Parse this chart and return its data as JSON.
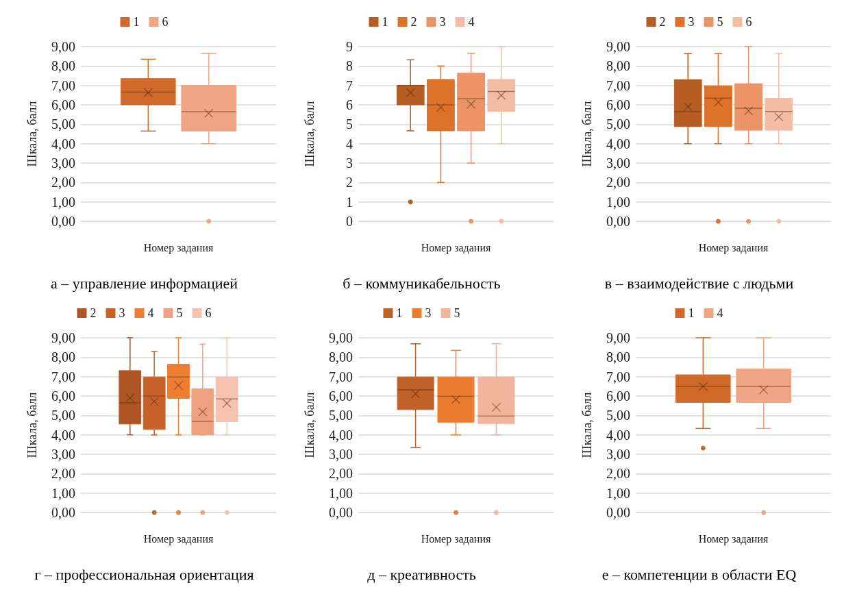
{
  "chart_data": [
    {
      "type": "box",
      "title": "а – управление информацией",
      "xlabel": "Номер задания",
      "ylabel": "Шкала, балл",
      "categories": [
        null
      ],
      "ylim": [
        0,
        9
      ],
      "yticks": [
        {
          "value": 0,
          "label": "0,00"
        },
        {
          "value": 1,
          "label": "1,00"
        },
        {
          "value": 2,
          "label": "2,00"
        },
        {
          "value": 3,
          "label": "3,00"
        },
        {
          "value": 4,
          "label": "4,00"
        },
        {
          "value": 5,
          "label": "5,00"
        },
        {
          "value": 6,
          "label": "6,00"
        },
        {
          "value": 7,
          "label": "7,00"
        },
        {
          "value": 8,
          "label": "8,00"
        },
        {
          "value": 9,
          "label": "9,00"
        }
      ],
      "grid": "y",
      "legend": "top",
      "series": [
        {
          "name": "1",
          "color": "#cf6a2c",
          "boxes": [
            {
              "low": 4.65,
              "q1": 6.0,
              "median": 6.65,
              "q3": 7.35,
              "high": 8.35,
              "mean": 6.63
            }
          ]
        },
        {
          "name": "6",
          "color": "#f0a585",
          "boxes": [
            {
              "low": 4.0,
              "q1": 4.65,
              "median": 5.65,
              "q3": 7.0,
              "high": 8.65,
              "mean": 5.56,
              "outliers": [
                0
              ]
            }
          ]
        }
      ]
    },
    {
      "type": "box",
      "title": "б – коммуникабельность",
      "xlabel": "Номер задания",
      "ylabel": "Шкала, балл",
      "categories": [
        null
      ],
      "ylim": [
        0,
        9
      ],
      "yticks": [
        0,
        1,
        2,
        3,
        4,
        5,
        6,
        7,
        8,
        9
      ],
      "grid": "y",
      "legend": "top",
      "series": [
        {
          "name": "1",
          "color": "#b65d24",
          "boxes": [
            {
              "low": 4.66,
              "q1": 6.0,
              "median": 7.0,
              "q3": 7.0,
              "high": 8.32,
              "mean": 6.63,
              "outliers": [
                1
              ]
            }
          ]
        },
        {
          "name": "2",
          "color": "#dd722a",
          "boxes": [
            {
              "low": 2.0,
              "q1": 4.66,
              "median": 6.0,
              "q3": 7.31,
              "high": 8.0,
              "mean": 5.87
            }
          ]
        },
        {
          "name": "3",
          "color": "#ec9368",
          "boxes": [
            {
              "low": 3.0,
              "q1": 4.66,
              "median": 6.32,
              "q3": 7.63,
              "high": 8.65,
              "mean": 6.03,
              "outliers": [
                0
              ]
            }
          ]
        },
        {
          "name": "4",
          "color": "#f3bca5",
          "boxes": [
            {
              "low": 4.0,
              "q1": 5.66,
              "median": 6.69,
              "q3": 7.31,
              "high": 9.0,
              "mean": 6.49,
              "outliers": [
                0
              ]
            }
          ]
        }
      ]
    },
    {
      "type": "box",
      "title": "в – взаимодействие с людьми",
      "xlabel": "Номер задания",
      "ylabel": "Шкала, балл",
      "categories": [
        null
      ],
      "ylim": [
        0,
        9
      ],
      "yticks": [
        {
          "value": 0,
          "label": "0,00"
        },
        {
          "value": 1,
          "label": "1,00"
        },
        {
          "value": 2,
          "label": "2,00"
        },
        {
          "value": 3,
          "label": "3,00"
        },
        {
          "value": 4,
          "label": "4,00"
        },
        {
          "value": 5,
          "label": "5,00"
        },
        {
          "value": 6,
          "label": "6,00"
        },
        {
          "value": 7,
          "label": "7,00"
        },
        {
          "value": 8,
          "label": "8,00"
        },
        {
          "value": 9,
          "label": "9,00"
        }
      ],
      "grid": "y",
      "legend": "top",
      "series": [
        {
          "name": "2",
          "color": "#b65d24",
          "boxes": [
            {
              "low": 4.0,
              "q1": 4.88,
              "median": 5.65,
              "q3": 7.3,
              "high": 8.64,
              "mean": 5.9
            }
          ]
        },
        {
          "name": "3",
          "color": "#dd722a",
          "boxes": [
            {
              "low": 4.0,
              "q1": 4.88,
              "median": 6.34,
              "q3": 6.98,
              "high": 8.64,
              "mean": 6.13,
              "outliers": [
                0
              ]
            }
          ]
        },
        {
          "name": "5",
          "color": "#ec9368",
          "boxes": [
            {
              "low": 4.0,
              "q1": 4.69,
              "median": 5.82,
              "q3": 7.09,
              "high": 9.0,
              "mean": 5.69,
              "outliers": [
                0
              ]
            }
          ]
        },
        {
          "name": "6",
          "color": "#f3bca5",
          "boxes": [
            {
              "low": 4.0,
              "q1": 4.69,
              "median": 5.66,
              "q3": 6.34,
              "high": 8.64,
              "mean": 5.38,
              "outliers": [
                0
              ]
            }
          ]
        }
      ]
    },
    {
      "type": "box",
      "title": "г – профессиональная ориентация",
      "xlabel": "Номер задания",
      "ylabel": "Шкала, балл",
      "categories": [
        null
      ],
      "ylim": [
        0,
        9
      ],
      "yticks": [
        {
          "value": 0,
          "label": "0,00"
        },
        {
          "value": 1,
          "label": "1,00"
        },
        {
          "value": 2,
          "label": "2,00"
        },
        {
          "value": 3,
          "label": "3,00"
        },
        {
          "value": 4,
          "label": "4,00"
        },
        {
          "value": 5,
          "label": "5,00"
        },
        {
          "value": 6,
          "label": "6,00"
        },
        {
          "value": 7,
          "label": "7,00"
        },
        {
          "value": 8,
          "label": "8,00"
        },
        {
          "value": 9,
          "label": "9,00"
        }
      ],
      "grid": "y",
      "legend": "top",
      "series": [
        {
          "name": "2",
          "color": "#ad5623",
          "boxes": [
            {
              "low": 4.0,
              "q1": 4.56,
              "median": 5.65,
              "q3": 7.31,
              "high": 9.0,
              "mean": 5.9
            }
          ]
        },
        {
          "name": "3",
          "color": "#c8622a",
          "boxes": [
            {
              "low": 4.0,
              "q1": 4.28,
              "median": 6.0,
              "q3": 6.98,
              "high": 8.3,
              "mean": 5.72,
              "outliers": [
                0
              ]
            }
          ]
        },
        {
          "name": "4",
          "color": "#ed7d31",
          "boxes": [
            {
              "low": 4.0,
              "q1": 5.88,
              "median": 6.98,
              "q3": 7.64,
              "high": 9.0,
              "mean": 6.55,
              "outliers": [
                0
              ]
            }
          ]
        },
        {
          "name": "5",
          "color": "#efa07e",
          "boxes": [
            {
              "low": 4.0,
              "q1": 4.0,
              "median": 4.69,
              "q3": 6.37,
              "high": 8.67,
              "mean": 5.19,
              "outliers": [
                0
              ]
            }
          ]
        },
        {
          "name": "6",
          "color": "#f4c2ae",
          "boxes": [
            {
              "low": 4.0,
              "q1": 4.68,
              "median": 5.85,
              "q3": 6.98,
              "high": 9.0,
              "mean": 5.62,
              "outliers": [
                0
              ]
            }
          ]
        }
      ]
    },
    {
      "type": "box",
      "title": "д – креативность",
      "xlabel": "Номер задания",
      "ylabel": "Шкала, балл",
      "categories": [
        null
      ],
      "ylim": [
        0,
        9
      ],
      "yticks": [
        {
          "value": 0,
          "label": "0,00"
        },
        {
          "value": 1,
          "label": "1,00"
        },
        {
          "value": 2,
          "label": "2,00"
        },
        {
          "value": 3,
          "label": "3,00"
        },
        {
          "value": 4,
          "label": "4,00"
        },
        {
          "value": 5,
          "label": "5,00"
        },
        {
          "value": 6,
          "label": "6,00"
        },
        {
          "value": 7,
          "label": "7,00"
        },
        {
          "value": 8,
          "label": "8,00"
        },
        {
          "value": 9,
          "label": "9,00"
        }
      ],
      "grid": "y",
      "legend": "top",
      "series": [
        {
          "name": "1",
          "color": "#c0612a",
          "boxes": [
            {
              "low": 3.34,
              "q1": 5.3,
              "median": 6.32,
              "q3": 6.98,
              "high": 8.69,
              "mean": 6.11
            }
          ]
        },
        {
          "name": "3",
          "color": "#ec7c30",
          "boxes": [
            {
              "low": 4.0,
              "q1": 4.65,
              "median": 5.98,
              "q3": 6.98,
              "high": 8.35,
              "mean": 5.82,
              "outliers": [
                0
              ]
            }
          ]
        },
        {
          "name": "5",
          "color": "#f2b49c",
          "boxes": [
            {
              "low": 4.0,
              "q1": 4.58,
              "median": 4.97,
              "q3": 6.98,
              "high": 8.69,
              "mean": 5.42,
              "outliers": [
                0
              ]
            }
          ]
        }
      ]
    },
    {
      "type": "box",
      "title": "е – компетенции в области EQ",
      "xlabel": "Номер задания",
      "ylabel": "Шкала, балл",
      "categories": [
        null
      ],
      "ylim": [
        0,
        9
      ],
      "yticks": [
        {
          "value": 0,
          "label": "0,00"
        },
        {
          "value": 1,
          "label": "1,00"
        },
        {
          "value": 2,
          "label": "2,00"
        },
        {
          "value": 3,
          "label": "3,00"
        },
        {
          "value": 4,
          "label": "4,00"
        },
        {
          "value": 5,
          "label": "5,00"
        },
        {
          "value": 6,
          "label": "6,00"
        },
        {
          "value": 7,
          "label": "7,00"
        },
        {
          "value": 8,
          "label": "8,00"
        },
        {
          "value": 9,
          "label": "9,00"
        }
      ],
      "grid": "y",
      "legend": "top",
      "series": [
        {
          "name": "1",
          "color": "#d0692a",
          "boxes": [
            {
              "low": 4.33,
              "q1": 5.67,
              "median": 6.49,
              "q3": 7.09,
              "high": 9.0,
              "mean": 6.49,
              "outliers": [
                3.32
              ]
            }
          ]
        },
        {
          "name": "4",
          "color": "#f0a585",
          "boxes": [
            {
              "low": 4.33,
              "q1": 5.67,
              "median": 6.49,
              "q3": 7.39,
              "high": 9.0,
              "mean": 6.32,
              "outliers": [
                0
              ]
            }
          ]
        }
      ]
    }
  ]
}
